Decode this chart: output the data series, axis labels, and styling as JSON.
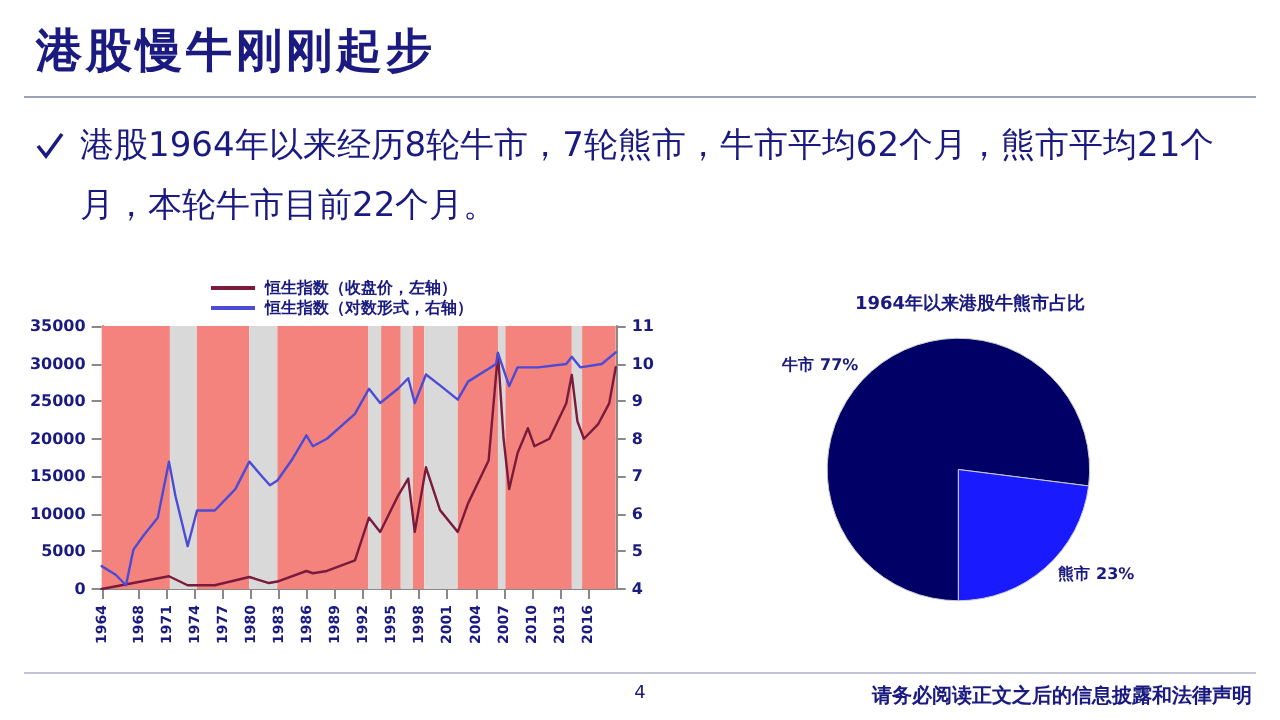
{
  "chart_data": [
    {
      "type": "line",
      "title": "港股慢牛刚刚起步",
      "subtitle": "港股1964年以来经历8轮牛市，7轮熊市，牛市平均62个月，熊市平均21个月，本轮牛市目前22个月。",
      "annotations": [
        "4",
        "请务必阅读正文之后的信息披露和法律声明"
      ],
      "xlim": [
        1964,
        2019
      ],
      "xticks": [
        1964,
        1968,
        1971,
        1974,
        1977,
        1980,
        1983,
        1986,
        1989,
        1992,
        1995,
        1998,
        2001,
        2004,
        2007,
        2010,
        2013,
        2016
      ],
      "ylim": [
        0,
        35000
      ],
      "yticks": [
        0,
        5000,
        10000,
        15000,
        20000,
        25000,
        30000,
        35000
      ],
      "y2lim": [
        4,
        11
      ],
      "y2ticks": [
        4,
        5,
        6,
        7,
        8,
        9,
        10,
        11
      ],
      "grid": false,
      "legend": "top",
      "marker": "none",
      "line_style": "solid",
      "bands": [
        {
          "axis": "x",
          "from": 1964,
          "to": 1971.3,
          "color": "#f4837d"
        },
        {
          "axis": "x",
          "from": 1971.3,
          "to": 1974.2,
          "color": "#d9d9d9"
        },
        {
          "axis": "x",
          "from": 1974.2,
          "to": 1979.8,
          "color": "#f4837d"
        },
        {
          "axis": "x",
          "from": 1979.8,
          "to": 1982.8,
          "color": "#d9d9d9"
        },
        {
          "axis": "x",
          "from": 1982.8,
          "to": 1992.5,
          "color": "#f4837d"
        },
        {
          "axis": "x",
          "from": 1992.5,
          "to": 1993.9,
          "color": "#d9d9d9"
        },
        {
          "axis": "x",
          "from": 1993.9,
          "to": 1996.0,
          "color": "#f4837d"
        },
        {
          "axis": "x",
          "from": 1996.0,
          "to": 1997.3,
          "color": "#d9d9d9"
        },
        {
          "axis": "x",
          "from": 1997.3,
          "to": 1998.5,
          "color": "#f4837d"
        },
        {
          "axis": "x",
          "from": 1998.5,
          "to": 2002.1,
          "color": "#d9d9d9"
        },
        {
          "axis": "x",
          "from": 2002.1,
          "to": 2006.4,
          "color": "#f4837d"
        },
        {
          "axis": "x",
          "from": 2006.4,
          "to": 2007.2,
          "color": "#d9d9d9"
        },
        {
          "axis": "x",
          "from": 2007.2,
          "to": 2014.3,
          "color": "#f4837d"
        },
        {
          "axis": "x",
          "from": 2014.3,
          "to": 2015.4,
          "color": "#d9d9d9"
        },
        {
          "axis": "x",
          "from": 2015.4,
          "to": 2019,
          "color": "#f4837d"
        }
      ],
      "series": [
        {
          "name": "恒生指数（收盘价，左轴）",
          "color": "#7a1a3c",
          "x": [
            1964.0,
            1971.2,
            1973.2,
            1976.1,
            1979.8,
            1981.9,
            1982.8,
            1985.9,
            1986.6,
            1988.1,
            1991.1,
            1992.6,
            1993.8,
            1995.7,
            1996.8,
            1997.5,
            1998.7,
            2000.2,
            2002.1,
            2003.2,
            2005.4,
            2006.4,
            2007.0,
            2007.6,
            2008.5,
            2009.6,
            2010.3,
            2011.9,
            2013.7,
            2014.3,
            2014.9,
            2015.6,
            2017.1,
            2018.3,
            2019.0
          ],
          "values": [
            0,
            1700,
            500,
            500,
            1600,
            800,
            1000,
            2400,
            2100,
            2400,
            3800,
            9500,
            7600,
            12400,
            14700,
            7600,
            16200,
            10500,
            7600,
            11400,
            17100,
            31400,
            20000,
            13300,
            18100,
            21400,
            19000,
            20000,
            24700,
            28500,
            22300,
            20000,
            21900,
            24700,
            29500
          ]
        },
        {
          "name": "恒生指数（对数形式，右轴）",
          "color": "#4b4bd6",
          "axis": "y2",
          "x": [
            1964.0,
            1965.5,
            1966.6,
            1967.4,
            1968.5,
            1970.0,
            1971.2,
            1971.9,
            1973.2,
            1974.2,
            1976.1,
            1978.3,
            1979.8,
            1981.0,
            1982.0,
            1982.8,
            1984.3,
            1985.9,
            1986.6,
            1988.1,
            1991.1,
            1992.6,
            1993.8,
            1995.7,
            1996.8,
            1997.5,
            1998.7,
            2000.2,
            2002.1,
            2003.2,
            2006.2,
            2006.4,
            2007.6,
            2008.5,
            2010.7,
            2013.7,
            2014.3,
            2015.2,
            2017.5,
            2019.0
          ],
          "values": [
            4.61,
            4.38,
            4.1,
            5.05,
            5.43,
            5.9,
            7.39,
            6.47,
            5.14,
            6.09,
            6.09,
            6.66,
            7.39,
            7.04,
            6.76,
            6.89,
            7.42,
            8.09,
            7.8,
            8.0,
            8.66,
            9.33,
            8.95,
            9.33,
            9.61,
            8.95,
            9.71,
            9.42,
            9.04,
            9.52,
            9.99,
            10.28,
            9.4,
            9.9,
            9.9,
            9.99,
            10.18,
            9.9,
            9.99,
            10.3
          ]
        }
      ]
    },
    {
      "type": "pie",
      "title": "1964年以来港股牛熊市占比",
      "categories": [
        "牛市",
        "熊市"
      ],
      "values": [
        77,
        23
      ],
      "colors": [
        "#000066",
        "#1a1aff"
      ],
      "value_labels": [
        "77%",
        "23%"
      ],
      "legend": false
    }
  ]
}
